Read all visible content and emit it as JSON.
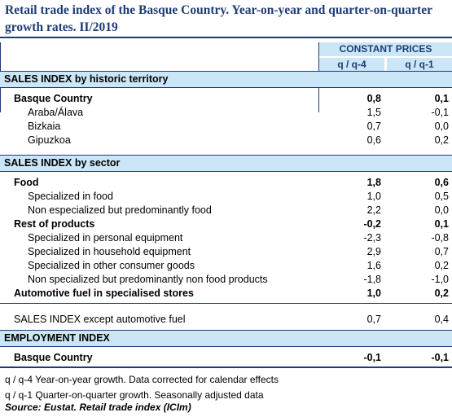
{
  "title": "Retail trade index of the Basque Country. Year-on-year and quarter-on-quarter growth rates. II/2019",
  "header": {
    "group": "CONSTANT PRICES",
    "col1": "q / q-4",
    "col2": "q / q-1"
  },
  "sections": [
    {
      "title": "SALES INDEX by historic territory",
      "rows": [
        {
          "label": "Basque Country",
          "v1": "0,8",
          "v2": "0,1",
          "bold": true
        },
        {
          "label": "Araba/Álava",
          "v1": "1,5",
          "v2": "-0,1",
          "bold": false
        },
        {
          "label": "Bizkaia",
          "v1": "0,7",
          "v2": "0,0",
          "bold": false
        },
        {
          "label": "Gipuzkoa",
          "v1": "0,6",
          "v2": "0,2",
          "bold": false
        }
      ]
    },
    {
      "title": "SALES INDEX by sector",
      "rows": [
        {
          "label": "Food",
          "v1": "1,8",
          "v2": "0,6",
          "bold": true
        },
        {
          "label": "Specialized in food",
          "v1": "1,0",
          "v2": "0,5",
          "bold": false
        },
        {
          "label": "Non especialized but predominantly food",
          "v1": "2,2",
          "v2": "0,0",
          "bold": false
        },
        {
          "label": "Rest of products",
          "v1": "-0,2",
          "v2": "0,1",
          "bold": true
        },
        {
          "label": "Specialized in personal equipment",
          "v1": "-2,3",
          "v2": "-0,8",
          "bold": false
        },
        {
          "label": "Specialized in household equipment",
          "v1": "2,9",
          "v2": "0,7",
          "bold": false
        },
        {
          "label": "Specialized in other consumer goods",
          "v1": "1,6",
          "v2": "0,2",
          "bold": false
        },
        {
          "label": "Non specialized but predominantly non food products",
          "v1": "-1,8",
          "v2": "-1,0",
          "bold": false
        },
        {
          "label": "Automotive fuel in specialised stores",
          "v1": "1,0",
          "v2": "0,2",
          "bold": true
        }
      ]
    },
    {
      "except": {
        "label": "SALES INDEX except automotive fuel",
        "v1": "0,7",
        "v2": "0,4"
      }
    },
    {
      "title": "EMPLOYMENT INDEX",
      "rows": [
        {
          "label": "Basque Country",
          "v1": "-0,1",
          "v2": "-0,1",
          "bold": true
        }
      ]
    }
  ],
  "footnotes": {
    "note1": "q / q-4 Year-on-year growth. Data corrected for calendar effects",
    "note2": "q / q-1 Quarter-on-quarter growth. Seasonally adjusted data",
    "source": "Source: Eustat. Retail trade index (ICIm)"
  }
}
